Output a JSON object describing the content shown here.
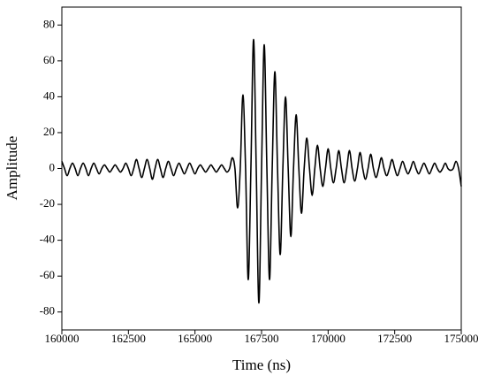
{
  "chart_data": {
    "type": "line",
    "x_label": "Time (ns)",
    "y_label": "Amplitude",
    "xlim": [
      160000,
      175000
    ],
    "xticks": [
      160000,
      162500,
      165000,
      167500,
      170000,
      172500,
      175000
    ],
    "ylim": [
      -90,
      90
    ],
    "yticks": [
      -80,
      -60,
      -40,
      -20,
      0,
      20,
      40,
      60,
      80
    ],
    "grid": false,
    "x": [
      160000,
      160100,
      160200,
      160300,
      160400,
      160500,
      160600,
      160700,
      160800,
      160900,
      161000,
      161100,
      161200,
      161300,
      161400,
      161500,
      161600,
      161700,
      161800,
      161900,
      162000,
      162100,
      162200,
      162300,
      162400,
      162500,
      162600,
      162700,
      162800,
      162900,
      163000,
      163100,
      163200,
      163300,
      163400,
      163500,
      163600,
      163700,
      163800,
      163900,
      164000,
      164100,
      164200,
      164300,
      164400,
      164500,
      164600,
      164700,
      164800,
      164900,
      165000,
      165100,
      165200,
      165300,
      165400,
      165500,
      165600,
      165700,
      165800,
      165900,
      166000,
      166100,
      166200,
      166300,
      166400,
      166500,
      166600,
      166700,
      166800,
      166900,
      167000,
      167100,
      167200,
      167300,
      167400,
      167500,
      167600,
      167700,
      167800,
      167900,
      168000,
      168100,
      168200,
      168300,
      168400,
      168500,
      168600,
      168700,
      168800,
      168900,
      169000,
      169100,
      169200,
      169300,
      169400,
      169500,
      169600,
      169700,
      169800,
      169900,
      170000,
      170100,
      170200,
      170300,
      170400,
      170500,
      170600,
      170700,
      170800,
      170900,
      171000,
      171100,
      171200,
      171300,
      171400,
      171500,
      171600,
      171700,
      171800,
      171900,
      172000,
      172100,
      172200,
      172300,
      172400,
      172500,
      172600,
      172700,
      172800,
      172900,
      173000,
      173100,
      173200,
      173300,
      173400,
      173500,
      173600,
      173700,
      173800,
      173900,
      174000,
      174100,
      174200,
      174300,
      174400,
      174500,
      174600,
      174700,
      174800,
      174900,
      175000
    ],
    "series": [
      {
        "color": "#000000",
        "values": [
          4,
          0,
          -4,
          0,
          3,
          0,
          -4,
          0,
          3,
          0,
          -4,
          0,
          3,
          0,
          -3,
          0,
          2,
          0,
          -2,
          0,
          2,
          0,
          -2,
          0,
          3,
          0,
          -4,
          0,
          5,
          0,
          -5,
          0,
          5,
          0,
          -6,
          0,
          5,
          0,
          -5,
          0,
          4,
          0,
          -4,
          0,
          3,
          0,
          -3,
          0,
          3,
          0,
          -3,
          0,
          2,
          0,
          -2,
          0,
          2,
          0,
          -2,
          0,
          2,
          0,
          -2,
          0,
          6,
          0,
          -22,
          0,
          41,
          0,
          -62,
          0,
          72,
          0,
          -75,
          0,
          69,
          0,
          -62,
          0,
          54,
          0,
          -48,
          0,
          40,
          0,
          -38,
          0,
          30,
          0,
          -25,
          0,
          17,
          0,
          -15,
          0,
          13,
          0,
          -10,
          0,
          11,
          0,
          -8,
          0,
          10,
          0,
          -8,
          0,
          10,
          0,
          -7,
          0,
          9,
          0,
          -6,
          0,
          8,
          0,
          -5,
          0,
          6,
          0,
          -4,
          0,
          5,
          0,
          -4,
          0,
          4,
          0,
          -3,
          0,
          4,
          0,
          -3,
          0,
          3,
          0,
          -3,
          0,
          3,
          0,
          -2,
          0,
          3,
          0,
          -1,
          0,
          4,
          0,
          -10
        ]
      }
    ]
  }
}
